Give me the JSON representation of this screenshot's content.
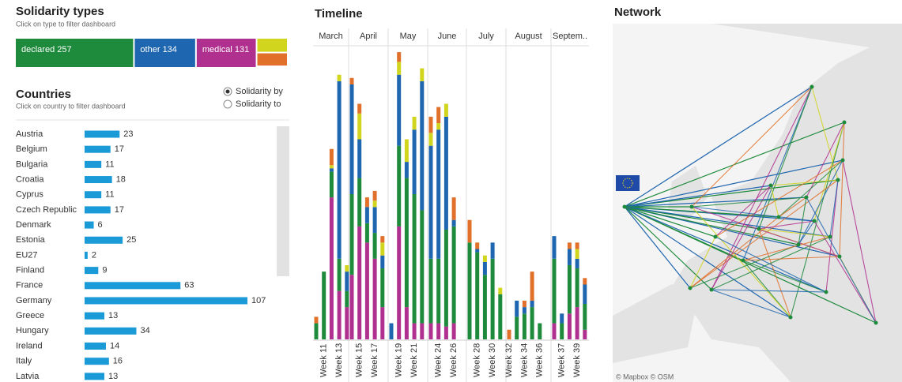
{
  "types": {
    "title": "Solidarity types",
    "subtitle": "Click on type to filter dashboard",
    "categories": [
      "declared",
      "other",
      "medical",
      null,
      null
    ],
    "values": [
      257,
      134,
      131,
      33,
      31
    ],
    "colors": [
      "#1e8a3c",
      "#1f66b0",
      "#b0308f",
      "#d2d51e",
      "#e0702a"
    ]
  },
  "countries_header": {
    "title": "Countries",
    "subtitle": "Click on country to filter dashboard",
    "options": [
      "Solidarity by",
      "Solidarity to"
    ],
    "selected": 0
  },
  "chart_data": [
    {
      "type": "hbar",
      "categories": [
        "Austria",
        "Belgium",
        "Bulgaria",
        "Croatia",
        "Cyprus",
        "Czech Republic",
        "Denmark",
        "Estonia",
        "EU27",
        "Finland",
        "France",
        "Germany",
        "Greece",
        "Hungary",
        "Ireland",
        "Italy",
        "Latvia"
      ],
      "values": [
        23,
        17,
        11,
        18,
        11,
        17,
        6,
        25,
        2,
        9,
        63,
        107,
        13,
        34,
        14,
        16,
        13
      ],
      "color": "#1a9ad6",
      "xlim": [
        0,
        107
      ]
    },
    {
      "type": "stacked_bar",
      "title": "Timeline",
      "months": [
        "March",
        "April",
        "May",
        "June",
        "July",
        "August",
        "Septem.."
      ],
      "categories": [
        null,
        "Week 11",
        null,
        "Week 13",
        null,
        null,
        "Week 15",
        null,
        "Week 17",
        null,
        null,
        "Week 19",
        null,
        "Week 21",
        null,
        null,
        "Week 24",
        null,
        "Week 26",
        null,
        "Week 28",
        null,
        "Week 30",
        null,
        "Week 32",
        null,
        "Week 34",
        null,
        "Week 36",
        null,
        "Week 37",
        null,
        "Week 39",
        null
      ],
      "ylim": [
        0,
        90
      ],
      "series": [
        {
          "color": "#b0308f",
          "values": [
            0,
            0,
            44,
            15,
            10,
            20,
            35,
            30,
            25,
            10,
            0,
            35,
            10,
            5,
            5,
            5,
            5,
            4,
            5,
            0,
            0,
            0,
            0,
            0,
            0,
            0,
            0,
            0,
            0,
            5,
            0,
            8,
            10,
            3
          ]
        },
        {
          "color": "#1e8a3c",
          "values": [
            5,
            21,
            8,
            10,
            5,
            25,
            15,
            6,
            8,
            12,
            0,
            25,
            40,
            40,
            35,
            20,
            20,
            30,
            30,
            30,
            27,
            20,
            25,
            14,
            0,
            7,
            8,
            10,
            5,
            20,
            5,
            15,
            12,
            8
          ]
        },
        {
          "color": "#1f66b0",
          "values": [
            0,
            0,
            1,
            55,
            6,
            34,
            12,
            5,
            8,
            4,
            5,
            22,
            5,
            20,
            40,
            35,
            40,
            35,
            2,
            0,
            1,
            4,
            5,
            0,
            0,
            5,
            2,
            2,
            0,
            7,
            3,
            5,
            3,
            6
          ]
        },
        {
          "color": "#d2d51e",
          "values": [
            0,
            0,
            1,
            2,
            2,
            0,
            8,
            0,
            2,
            4,
            0,
            4,
            7,
            4,
            4,
            4,
            2,
            4,
            0,
            0,
            0,
            2,
            0,
            2,
            0,
            0,
            0,
            0,
            0,
            0,
            0,
            0,
            3,
            0
          ]
        },
        {
          "color": "#e0702a",
          "values": [
            2,
            0,
            5,
            0,
            0,
            2,
            3,
            3,
            3,
            2,
            0,
            3,
            0,
            0,
            0,
            5,
            5,
            0,
            7,
            7,
            2,
            0,
            0,
            0,
            3,
            0,
            2,
            9,
            0,
            0,
            0,
            2,
            2,
            2
          ]
        }
      ]
    }
  ],
  "network": {
    "title": "Network",
    "attribution": "© Mapbox © OSM"
  }
}
